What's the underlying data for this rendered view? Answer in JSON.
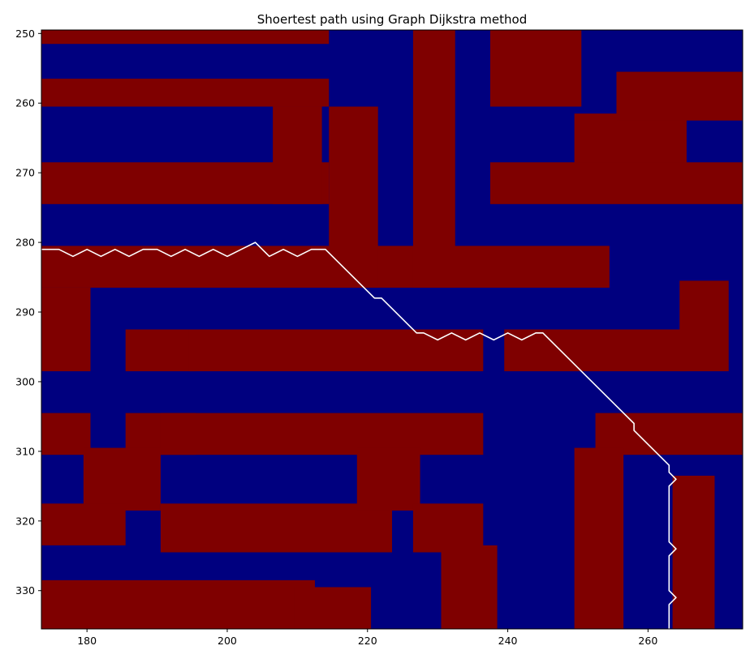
{
  "chart_data": {
    "type": "heatmap",
    "title": "Shoertest path using Graph Dijkstra method",
    "xlabel": "",
    "ylabel": "",
    "xlim": [
      173.5,
      273.5
    ],
    "ylim": [
      335.5,
      249.5
    ],
    "x_ticks": [
      "180",
      "200",
      "220",
      "240",
      "260"
    ],
    "y_ticks": [
      "250",
      "260",
      "270",
      "280",
      "290",
      "300",
      "310",
      "320",
      "330"
    ],
    "grid": false,
    "colors": {
      "wall": "#7f0000",
      "free": "#00007f",
      "path": "#ffffff",
      "axes_bg": "#ffffff",
      "text": "#000000"
    },
    "regions": {
      "wall": [
        [
          174,
          214,
          250,
          251
        ],
        [
          174,
          214,
          257,
          260
        ],
        [
          174,
          214,
          269,
          274
        ],
        [
          174,
          254,
          281,
          286
        ],
        [
          174,
          180,
          287,
          298
        ],
        [
          186,
          195,
          293,
          298
        ],
        [
          195,
          236,
          293,
          298
        ],
        [
          174,
          180,
          305,
          310
        ],
        [
          186,
          195,
          305,
          310
        ],
        [
          191,
          236,
          305,
          310
        ],
        [
          180,
          190,
          310,
          318
        ],
        [
          174,
          185,
          318,
          323
        ],
        [
          191,
          223,
          318,
          324
        ],
        [
          174,
          212,
          329,
          335
        ],
        [
          210,
          220,
          330,
          335
        ],
        [
          207,
          213,
          261,
          274
        ],
        [
          215,
          221,
          261,
          286
        ],
        [
          227,
          232,
          250,
          286
        ],
        [
          238,
          250,
          250,
          260
        ],
        [
          250,
          265,
          262,
          269
        ],
        [
          238,
          274,
          269,
          274
        ],
        [
          256,
          274,
          256,
          262
        ],
        [
          265,
          271,
          286,
          298
        ],
        [
          253,
          274,
          305,
          310
        ],
        [
          219,
          227,
          310,
          318
        ],
        [
          227,
          236,
          318,
          324
        ],
        [
          231,
          238,
          324,
          335
        ],
        [
          250,
          256,
          310,
          335
        ],
        [
          264,
          269,
          314,
          335
        ],
        [
          240,
          265,
          293,
          298
        ]
      ],
      "path": [
        [
          173.5,
          281
        ],
        [
          176,
          281
        ],
        [
          178,
          282
        ],
        [
          180,
          281
        ],
        [
          182,
          282
        ],
        [
          184,
          281
        ],
        [
          186,
          282
        ],
        [
          188,
          281
        ],
        [
          190,
          281
        ],
        [
          192,
          282
        ],
        [
          194,
          281
        ],
        [
          196,
          282
        ],
        [
          198,
          281
        ],
        [
          200,
          282
        ],
        [
          202,
          281
        ],
        [
          204,
          280
        ],
        [
          206,
          282
        ],
        [
          208,
          281
        ],
        [
          210,
          282
        ],
        [
          212,
          281
        ],
        [
          214,
          281
        ],
        [
          221,
          288
        ],
        [
          222,
          288
        ],
        [
          227,
          293
        ],
        [
          228,
          293
        ],
        [
          230,
          294
        ],
        [
          232,
          293
        ],
        [
          234,
          294
        ],
        [
          236,
          293
        ],
        [
          238,
          294
        ],
        [
          240,
          293
        ],
        [
          242,
          294
        ],
        [
          244,
          293
        ],
        [
          245,
          293
        ],
        [
          258,
          306
        ],
        [
          258,
          307
        ],
        [
          263,
          312
        ],
        [
          263,
          313
        ],
        [
          264,
          314
        ],
        [
          263,
          315
        ],
        [
          263,
          323
        ],
        [
          264,
          324
        ],
        [
          263,
          325
        ],
        [
          263,
          330
        ],
        [
          264,
          331
        ],
        [
          263,
          332
        ],
        [
          263,
          335.5
        ]
      ]
    }
  }
}
